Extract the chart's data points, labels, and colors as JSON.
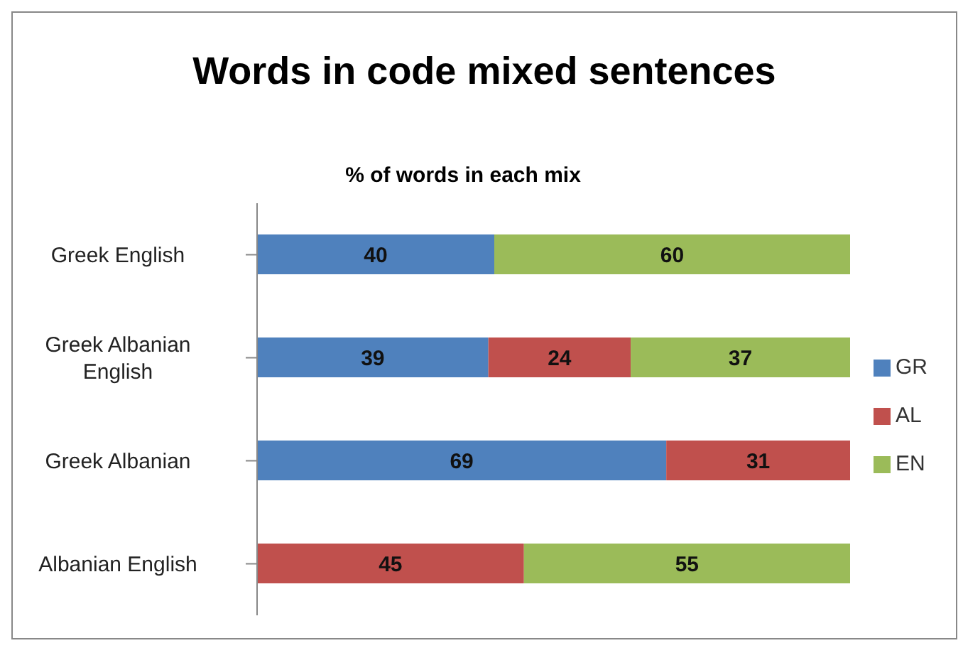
{
  "chart_data": {
    "type": "bar",
    "orientation": "horizontal",
    "stacked": true,
    "title": "Words in code mixed sentences",
    "subtitle": "% of words in each mix",
    "categories": [
      "Greek English",
      "Greek Albanian English",
      "Greek Albanian",
      "Albanian English"
    ],
    "series": [
      {
        "name": "GR",
        "color": "#4f81bd",
        "values": [
          40,
          39,
          69,
          null
        ]
      },
      {
        "name": "AL",
        "color": "#c0504d",
        "values": [
          null,
          24,
          31,
          45
        ]
      },
      {
        "name": "EN",
        "color": "#9bbb59",
        "values": [
          60,
          37,
          null,
          55
        ]
      }
    ],
    "data_labels": true,
    "legend": "right",
    "tick_labels": "y"
  }
}
